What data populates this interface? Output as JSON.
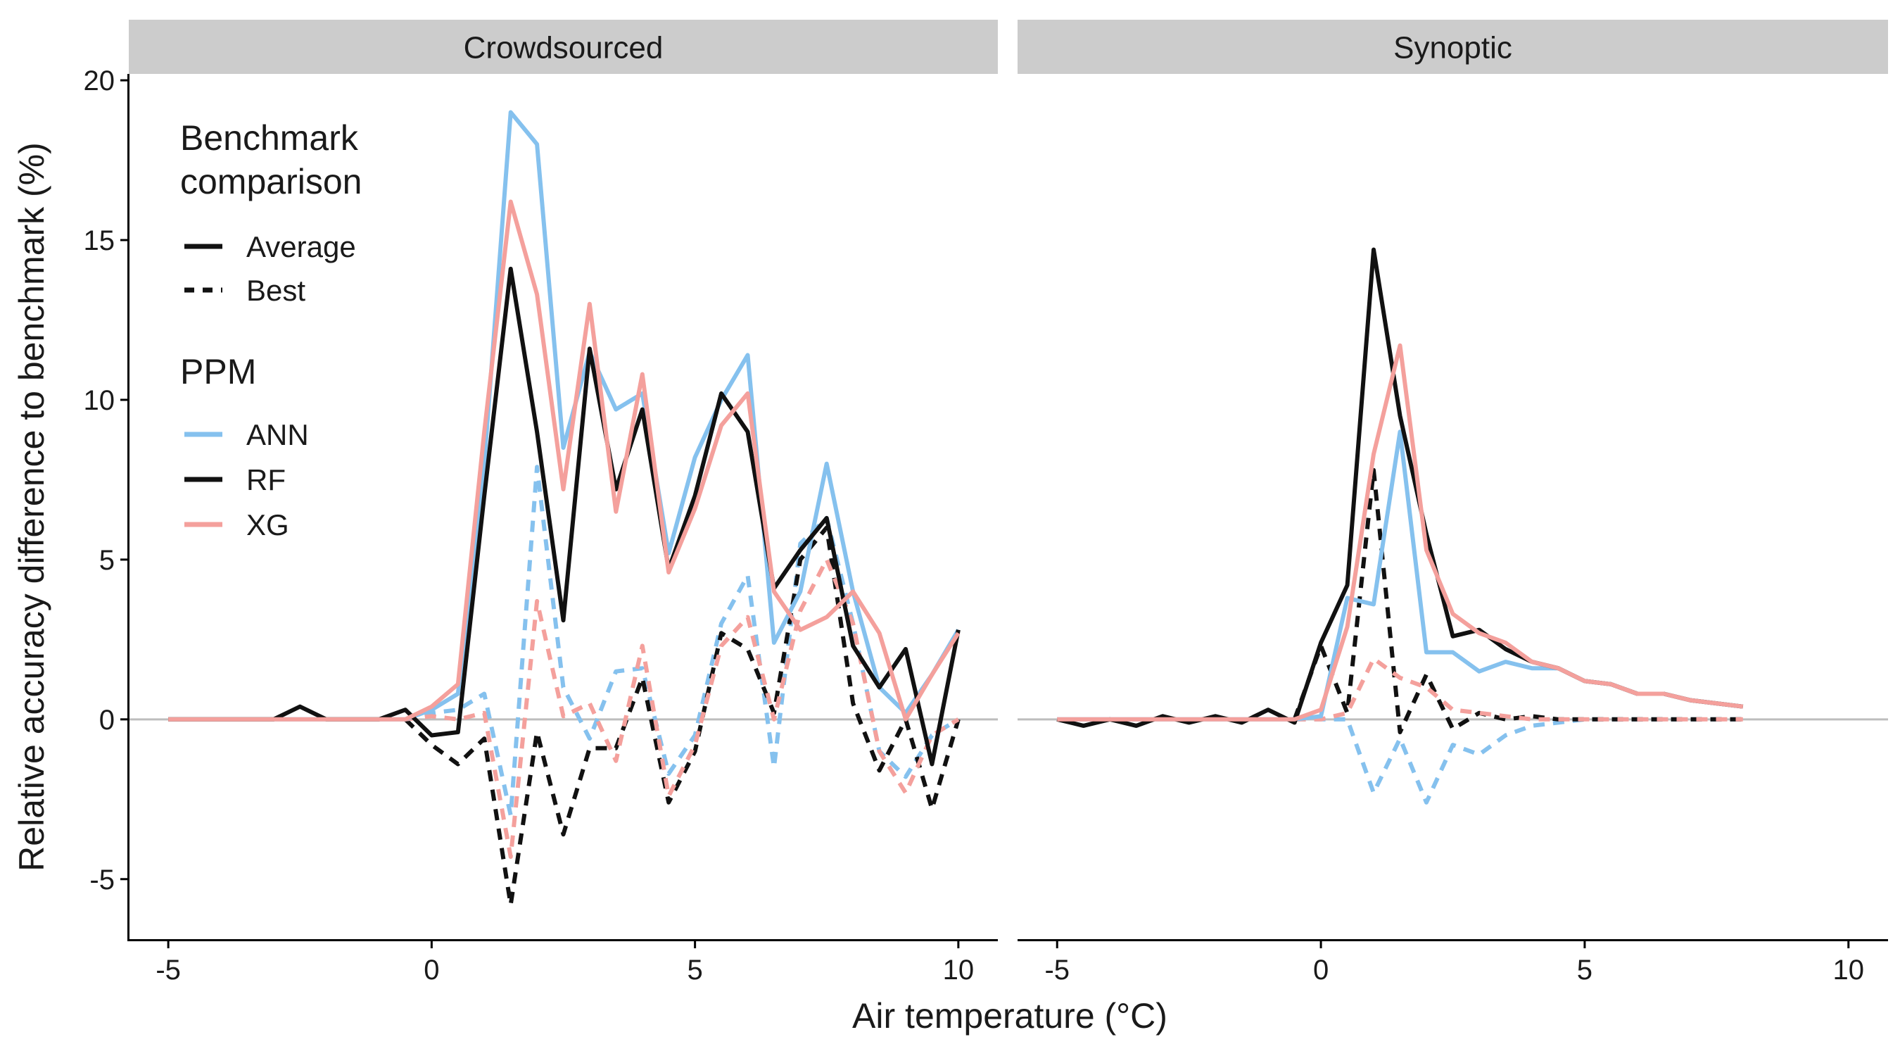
{
  "chart_data": {
    "type": "line",
    "xlabel": "Air temperature (°C)",
    "ylabel": "Relative accuracy difference to benchmark (%)",
    "xlim": [
      -5.75,
      10.75
    ],
    "ylim": [
      -6.9,
      20.2
    ],
    "x_ticks": [
      -5,
      0,
      5,
      10
    ],
    "y_ticks": [
      -5,
      0,
      5,
      10,
      15,
      20
    ],
    "grid": false,
    "reference_line": 0,
    "colors": {
      "ANN": "#85C1EE",
      "RF": "#111111",
      "XG": "#F4A09C",
      "reference": "#bdbdbd",
      "strip": "#cccccc"
    },
    "legend": {
      "placement": "top-left",
      "linetype_title": "Benchmark\ncomparison",
      "linetype_entries": [
        "Average",
        "Best"
      ],
      "color_title": "PPM",
      "color_entries": [
        "ANN",
        "RF",
        "XG"
      ]
    },
    "panels": [
      {
        "strip": "Crowdsourced",
        "series": [
          {
            "name": "ANN",
            "linetype": "solid",
            "x": [
              -5,
              -4.5,
              -4,
              -3.5,
              -3,
              -2.5,
              -2,
              -1.5,
              -1,
              -0.5,
              0,
              0.5,
              1,
              1.5,
              2,
              2.5,
              3,
              3.5,
              4,
              4.5,
              5,
              5.5,
              6,
              6.5,
              7,
              7.5,
              8,
              8.5,
              9,
              9.5,
              10
            ],
            "y": [
              0,
              0,
              0,
              0,
              0,
              0,
              0,
              0,
              0,
              0,
              0.3,
              0.8,
              8,
              19,
              18,
              8.5,
              11.5,
              9.7,
              10.2,
              5.2,
              8.2,
              10,
              11.4,
              2.4,
              4,
              8,
              4,
              1,
              0.2,
              1.4,
              2.8
            ]
          },
          {
            "name": "RF",
            "linetype": "solid",
            "x": [
              -5,
              -4.5,
              -4,
              -3.5,
              -3,
              -2.5,
              -2,
              -1.5,
              -1,
              -0.5,
              0,
              0.5,
              1,
              1.5,
              2,
              2.5,
              3,
              3.5,
              4,
              4.5,
              5,
              5.5,
              6,
              6.5,
              7,
              7.5,
              8,
              8.5,
              9,
              9.5,
              10
            ],
            "y": [
              0,
              0,
              0,
              0,
              0,
              0.4,
              0,
              0,
              0,
              0.3,
              -0.5,
              -0.4,
              7,
              14.1,
              9,
              3.1,
              11.6,
              7.2,
              9.7,
              4.7,
              7,
              10.2,
              9,
              4.1,
              5.3,
              6.3,
              2.3,
              1,
              2.2,
              -1.4,
              2.8
            ]
          },
          {
            "name": "XG",
            "linetype": "solid",
            "x": [
              -5,
              -4.5,
              -4,
              -3.5,
              -3,
              -2.5,
              -2,
              -1.5,
              -1,
              -0.5,
              0,
              0.5,
              1,
              1.5,
              2,
              2.5,
              3,
              3.5,
              4,
              4.5,
              5,
              5.5,
              6,
              6.5,
              7,
              7.5,
              8,
              8.5,
              9,
              9.5,
              10
            ],
            "y": [
              0,
              0,
              0,
              0,
              0,
              0,
              0,
              0,
              0,
              0,
              0.4,
              1.1,
              9,
              16.2,
              13.3,
              7.2,
              13,
              6.5,
              10.8,
              4.6,
              6.6,
              9.2,
              10.2,
              4,
              2.8,
              3.2,
              4,
              2.7,
              0,
              1.4,
              2.7
            ]
          },
          {
            "name": "ANN",
            "linetype": "dashed",
            "x": [
              -0.5,
              0,
              0.5,
              1,
              1.5,
              2,
              2.5,
              3,
              3.5,
              4,
              4.5,
              5,
              5.5,
              6,
              6.5,
              7,
              7.5,
              8,
              8.5,
              9,
              9.5,
              10
            ],
            "y": [
              0,
              0.2,
              0.3,
              0.8,
              -3,
              7.9,
              1,
              -0.6,
              1.5,
              1.6,
              -1.7,
              -0.5,
              3,
              4.5,
              -1.5,
              5.5,
              6.3,
              3,
              -1,
              -1.8,
              -0.5,
              0
            ]
          },
          {
            "name": "RF",
            "linetype": "dashed",
            "x": [
              -0.5,
              0,
              0.5,
              1,
              1.5,
              2,
              2.5,
              3,
              3.5,
              4,
              4.5,
              5,
              5.5,
              6,
              6.5,
              7,
              7.5,
              8,
              8.5,
              9,
              9.5,
              10
            ],
            "y": [
              0,
              -0.8,
              -1.4,
              -0.6,
              -5.8,
              -0.4,
              -3.6,
              -0.9,
              -0.9,
              1.3,
              -2.6,
              -1,
              2.7,
              2.2,
              0.2,
              5,
              6,
              0.5,
              -1.6,
              0,
              -2.8,
              0
            ]
          },
          {
            "name": "XG",
            "linetype": "dashed",
            "x": [
              -0.5,
              0,
              0.5,
              1,
              1.5,
              2,
              2.5,
              3,
              3.5,
              4,
              4.5,
              5,
              5.5,
              6,
              6.5,
              7,
              7.5,
              8,
              8.5,
              9,
              9.5,
              10
            ],
            "y": [
              0,
              0.1,
              0,
              0.2,
              -4.3,
              3.7,
              0.1,
              0.5,
              -1.3,
              2.3,
              -2.4,
              -0.8,
              2.3,
              3.2,
              0,
              3.4,
              5,
              3,
              -1,
              -2.3,
              -0.5,
              0
            ]
          }
        ]
      },
      {
        "strip": "Synoptic",
        "series": [
          {
            "name": "ANN",
            "linetype": "solid",
            "x": [
              -5,
              -4.5,
              -4,
              -3.5,
              -3,
              -2.5,
              -2,
              -1.5,
              -1,
              -0.5,
              0,
              0.5,
              1,
              1.5,
              2,
              2.5,
              3,
              3.5,
              4,
              4.5,
              5,
              5.5,
              6,
              6.5,
              7,
              7.5,
              8
            ],
            "y": [
              0,
              0,
              0,
              0,
              0,
              0,
              0,
              0,
              0,
              0,
              0.1,
              3.8,
              3.6,
              9,
              2.1,
              2.1,
              1.5,
              1.8,
              1.6,
              1.6,
              1.2,
              1.1,
              0.8,
              0.8,
              0.6,
              0.5,
              0.4
            ]
          },
          {
            "name": "RF",
            "linetype": "solid",
            "x": [
              -5,
              -4.5,
              -4,
              -3.5,
              -3,
              -2.5,
              -2,
              -1.5,
              -1,
              -0.5,
              0,
              0.5,
              1,
              1.5,
              2,
              2.5,
              3,
              3.5,
              4,
              4.5,
              5,
              5.5,
              6,
              6.5,
              7,
              7.5,
              8
            ],
            "y": [
              0,
              -0.2,
              0,
              -0.2,
              0.1,
              -0.1,
              0.1,
              -0.1,
              0.3,
              -0.1,
              2.4,
              4.2,
              14.7,
              9.5,
              5.8,
              2.6,
              2.8,
              2.2,
              1.8,
              1.6,
              1.2,
              1.1,
              0.8,
              0.8,
              0.6,
              0.5,
              0.4
            ]
          },
          {
            "name": "XG",
            "linetype": "solid",
            "x": [
              -5,
              -4.5,
              -4,
              -3.5,
              -3,
              -2.5,
              -2,
              -1.5,
              -1,
              -0.5,
              0,
              0.5,
              1,
              1.5,
              2,
              2.5,
              3,
              3.5,
              4,
              4.5,
              5,
              5.5,
              6,
              6.5,
              7,
              7.5,
              8
            ],
            "y": [
              0,
              0,
              0,
              0,
              0,
              0,
              0,
              0,
              0,
              0,
              0.3,
              2.9,
              8.3,
              11.7,
              5.3,
              3.3,
              2.7,
              2.4,
              1.8,
              1.6,
              1.2,
              1.1,
              0.8,
              0.8,
              0.6,
              0.5,
              0.4
            ]
          },
          {
            "name": "ANN",
            "linetype": "dashed",
            "x": [
              -0.5,
              0,
              0.5,
              1,
              1.5,
              2,
              2.5,
              3,
              3.5,
              4,
              4.5,
              5,
              5.5,
              6,
              6.5,
              7,
              7.5,
              8
            ],
            "y": [
              0,
              0,
              0,
              -2.3,
              -0.6,
              -2.6,
              -0.8,
              -1.1,
              -0.5,
              -0.2,
              -0.1,
              0,
              0,
              0,
              0,
              0,
              0,
              0
            ]
          },
          {
            "name": "RF",
            "linetype": "dashed",
            "x": [
              -0.5,
              0,
              0.5,
              1,
              1.5,
              2,
              2.5,
              3,
              3.5,
              4,
              4.5,
              5,
              5.5,
              6,
              6.5,
              7,
              7.5,
              8
            ],
            "y": [
              0,
              2.3,
              0.2,
              7.8,
              -0.4,
              1.4,
              -0.3,
              0.2,
              0,
              0.1,
              0,
              0,
              0,
              0,
              0,
              0,
              0,
              0
            ]
          },
          {
            "name": "XG",
            "linetype": "dashed",
            "x": [
              -0.5,
              0,
              0.5,
              1,
              1.5,
              2,
              2.5,
              3,
              3.5,
              4,
              4.5,
              5,
              5.5,
              6,
              6.5,
              7,
              7.5,
              8
            ],
            "y": [
              0,
              0,
              0.2,
              1.9,
              1.3,
              1,
              0.3,
              0.2,
              0.1,
              0,
              0,
              0,
              0,
              0,
              0,
              0,
              0,
              0
            ]
          }
        ]
      }
    ]
  }
}
